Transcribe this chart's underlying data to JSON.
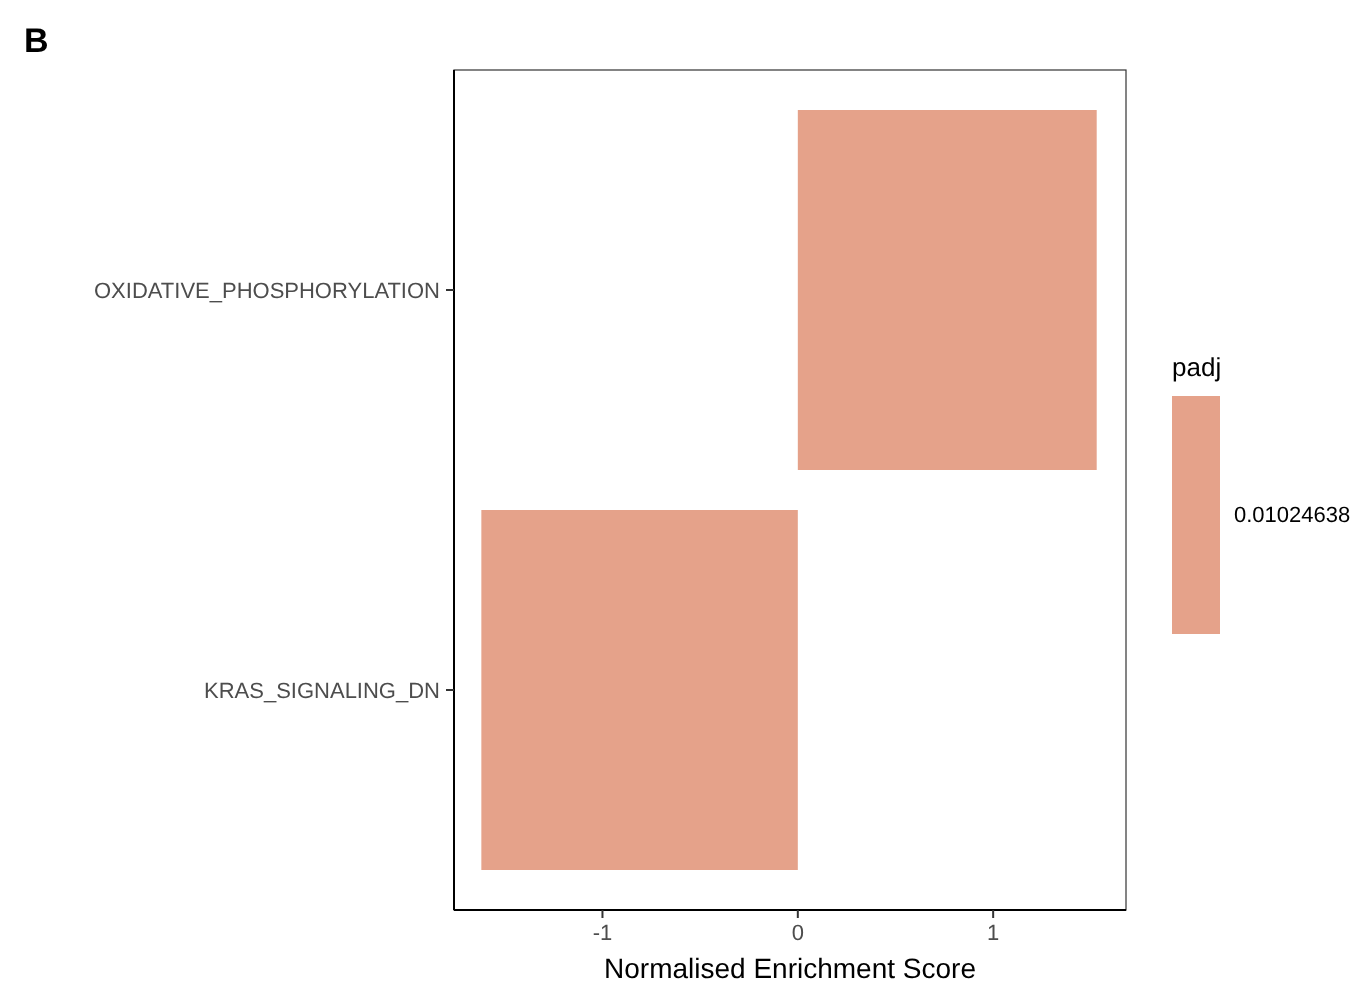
{
  "chart_data": {
    "type": "bar",
    "orientation": "horizontal",
    "xlabel": "Normalised Enrichment Score",
    "categories": [
      "OXIDATIVE_PHOSPHORYLATION",
      "KRAS_SIGNALING_DN"
    ],
    "series": [
      {
        "name": "0.01024638",
        "color": "#e5a28a",
        "values": [
          1.53,
          -1.62
        ]
      }
    ],
    "xlim": [
      -1.76,
      1.68
    ],
    "xticks": [
      -1,
      0,
      1
    ],
    "legend_title": "padj",
    "legend": "right",
    "annotations": [
      "B"
    ],
    "grid": false
  }
}
